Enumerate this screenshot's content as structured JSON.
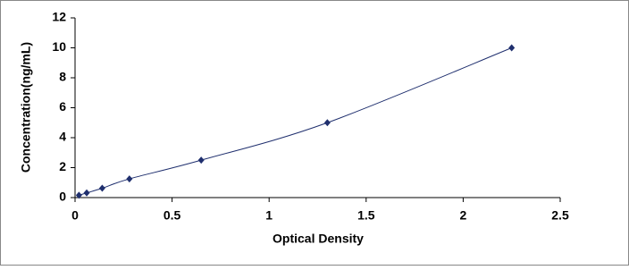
{
  "chart_data": {
    "type": "scatter-line",
    "x_label": "Optical Density",
    "y_label": "Concentration(ng/mL)",
    "x": [
      0.02,
      0.06,
      0.14,
      0.28,
      0.65,
      1.3,
      2.25
    ],
    "values": [
      0.156,
      0.312,
      0.625,
      1.25,
      2.5,
      5,
      10
    ],
    "color": "#1f2f6e",
    "xlim": [
      0,
      2.5
    ],
    "xticks": [
      0,
      0.5,
      1,
      1.5,
      2,
      2.5
    ],
    "ylim": [
      0,
      12
    ],
    "yticks": [
      0,
      2,
      4,
      6,
      8,
      10,
      12
    ]
  }
}
